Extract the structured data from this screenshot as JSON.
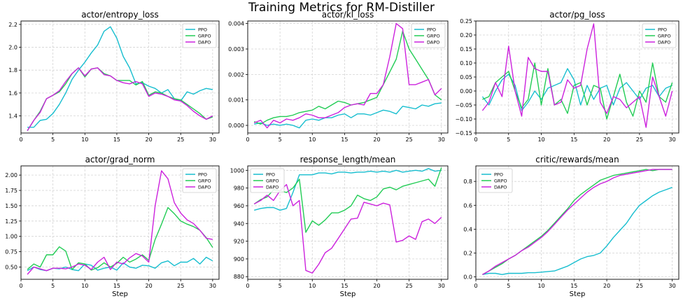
{
  "figure": {
    "title": "Training Metrics for RM-Distiller"
  },
  "series_names": [
    "PPO",
    "GRPO",
    "DAPO"
  ],
  "colors": {
    "PPO": "#17becf",
    "GRPO": "#22cc55",
    "DAPO": "#cc22dd"
  },
  "chart_data": [
    {
      "type": "line",
      "title": "actor/entropy_loss",
      "xlabel": "",
      "x": [
        1,
        2,
        3,
        4,
        5,
        6,
        7,
        8,
        9,
        10,
        11,
        12,
        13,
        14,
        15,
        16,
        17,
        18,
        19,
        20,
        21,
        22,
        23,
        24,
        25,
        26,
        27,
        28,
        29,
        30
      ],
      "xticks": [
        0,
        5,
        10,
        15,
        20,
        25,
        30
      ],
      "xticklabels": [
        "0",
        "5",
        "10",
        "15",
        "20",
        "25",
        "30"
      ],
      "xlim": [
        0,
        31
      ],
      "ylim": [
        1.25,
        2.23
      ],
      "yticks": [
        1.4,
        1.6,
        1.8,
        2.0,
        2.2
      ],
      "yticklabels": [
        "1.4",
        "1.6",
        "1.8",
        "2.0",
        "2.2"
      ],
      "legend": "top-right",
      "series": [
        {
          "name": "PPO",
          "values": [
            1.3,
            1.3,
            1.36,
            1.37,
            1.42,
            1.5,
            1.6,
            1.72,
            1.8,
            1.87,
            1.95,
            2.02,
            2.14,
            2.18,
            2.08,
            1.92,
            1.82,
            1.68,
            1.69,
            1.66,
            1.64,
            1.6,
            1.63,
            1.55,
            1.53,
            1.61,
            1.59,
            1.62,
            1.64,
            1.63
          ]
        },
        {
          "name": "GRPO",
          "values": [
            1.27,
            1.36,
            1.44,
            1.55,
            1.58,
            1.61,
            1.68,
            1.77,
            1.82,
            1.74,
            1.81,
            1.82,
            1.77,
            1.75,
            1.71,
            1.71,
            1.71,
            1.67,
            1.7,
            1.58,
            1.61,
            1.6,
            1.57,
            1.55,
            1.54,
            1.5,
            1.46,
            1.42,
            1.37,
            1.39
          ]
        },
        {
          "name": "DAPO",
          "values": [
            1.27,
            1.36,
            1.43,
            1.55,
            1.58,
            1.62,
            1.7,
            1.77,
            1.82,
            1.75,
            1.81,
            1.82,
            1.76,
            1.75,
            1.71,
            1.69,
            1.68,
            1.7,
            1.68,
            1.57,
            1.6,
            1.59,
            1.57,
            1.54,
            1.53,
            1.49,
            1.44,
            1.4,
            1.37,
            1.4
          ]
        }
      ]
    },
    {
      "type": "line",
      "title": "actor/kl_loss",
      "xlabel": "",
      "x": [
        1,
        2,
        3,
        4,
        5,
        6,
        7,
        8,
        9,
        10,
        11,
        12,
        13,
        14,
        15,
        16,
        17,
        18,
        19,
        20,
        21,
        22,
        23,
        24,
        25,
        26,
        27,
        28,
        29,
        30
      ],
      "xticks": [
        0,
        5,
        10,
        15,
        20,
        25,
        30
      ],
      "xticklabels": [
        "0",
        "5",
        "10",
        "15",
        "20",
        "25",
        "30"
      ],
      "xlim": [
        0,
        31
      ],
      "ylim": [
        -0.0003,
        0.0041
      ],
      "yticks": [
        0,
        0.001,
        0.002,
        0.003,
        0.004
      ],
      "yticklabels": [
        "0.000",
        "0.001",
        "0.002",
        "0.003",
        "0.004"
      ],
      "legend": "top-right",
      "series": [
        {
          "name": "PPO",
          "values": [
            5e-05,
            0.0001,
            0.0,
            5e-05,
            0.0,
            5e-05,
            0.0,
            -0.0001,
            0.0002,
            0.00025,
            0.0002,
            0.0003,
            0.0003,
            0.0004,
            0.00045,
            0.0003,
            0.00045,
            0.00045,
            0.0004,
            0.0005,
            0.0006,
            0.00055,
            0.00045,
            0.00075,
            0.0007,
            0.00065,
            0.0008,
            0.00075,
            0.00085,
            0.00088
          ]
        },
        {
          "name": "GRPO",
          "values": [
            0.00015,
            5e-05,
            0.0002,
            0.0003,
            0.00035,
            0.00035,
            0.0004,
            0.0005,
            0.00055,
            0.0006,
            0.00075,
            0.00065,
            0.0008,
            0.00095,
            0.0009,
            0.0008,
            0.00085,
            0.0009,
            0.001,
            0.0011,
            0.0016,
            0.0021,
            0.0026,
            0.0037,
            0.003,
            0.0026,
            0.0022,
            0.0018,
            0.0012,
            0.001
          ]
        },
        {
          "name": "DAPO",
          "values": [
            0.0001,
            0.0002,
            -0.0001,
            0.0002,
            0.0001,
            0.00025,
            0.0002,
            0.0003,
            0.00045,
            0.0004,
            0.0003,
            0.0003,
            0.0004,
            0.0005,
            0.0007,
            0.0008,
            0.00085,
            0.0008,
            0.00125,
            0.00125,
            0.0016,
            0.0027,
            0.004,
            0.0038,
            0.0016,
            0.0016,
            0.0017,
            0.0018,
            0.0012,
            0.00145
          ]
        }
      ]
    },
    {
      "type": "line",
      "title": "actor/pg_loss",
      "xlabel": "",
      "x": [
        1,
        2,
        3,
        4,
        5,
        6,
        7,
        8,
        9,
        10,
        11,
        12,
        13,
        14,
        15,
        16,
        17,
        18,
        19,
        20,
        21,
        22,
        23,
        24,
        25,
        26,
        27,
        28,
        29,
        30
      ],
      "xticks": [
        0,
        5,
        10,
        15,
        20,
        25,
        30
      ],
      "xticklabels": [
        "0",
        "5",
        "10",
        "15",
        "20",
        "25",
        "30"
      ],
      "xlim": [
        0,
        31
      ],
      "ylim": [
        -0.15,
        0.25
      ],
      "yticks": [
        -0.15,
        -0.1,
        -0.05,
        0.0,
        0.05,
        0.1,
        0.15,
        0.2,
        0.25
      ],
      "yticklabels": [
        "−0.15",
        "−0.10",
        "−0.05",
        "0.00",
        "0.05",
        "0.10",
        "0.15",
        "0.20",
        "0.25"
      ],
      "legend": "top-right",
      "series": [
        {
          "name": "PPO",
          "values": [
            -0.02,
            -0.05,
            0.0,
            0.04,
            0.06,
            0.02,
            -0.07,
            -0.04,
            0.0,
            -0.03,
            0.01,
            0.02,
            0.03,
            0.08,
            0.04,
            -0.05,
            0.02,
            -0.03,
            0.01,
            0.02,
            -0.05,
            0.01,
            0.03,
            0.0,
            -0.03,
            0.01,
            0.02,
            -0.02,
            0.01,
            0.02
          ]
        },
        {
          "name": "GRPO",
          "values": [
            -0.03,
            -0.02,
            0.03,
            0.05,
            0.07,
            0.0,
            -0.06,
            -0.03,
            0.1,
            -0.05,
            0.08,
            -0.05,
            -0.03,
            -0.08,
            0.02,
            0.03,
            -0.05,
            0.02,
            0.01,
            -0.1,
            -0.02,
            0.06,
            -0.04,
            -0.09,
            0.0,
            -0.04,
            0.1,
            -0.02,
            -0.04,
            0.03
          ]
        },
        {
          "name": "DAPO",
          "values": [
            -0.07,
            -0.04,
            0.03,
            -0.02,
            0.16,
            0.0,
            -0.09,
            0.12,
            0.08,
            0.07,
            0.07,
            -0.05,
            -0.04,
            0.04,
            0.01,
            0.02,
            0.15,
            0.24,
            -0.04,
            -0.08,
            -0.02,
            -0.03,
            -0.06,
            -0.04,
            -0.02,
            -0.13,
            0.05,
            -0.02,
            -0.09,
            0.0
          ]
        }
      ]
    },
    {
      "type": "line",
      "title": "actor/grad_norm",
      "xlabel": "Step",
      "x": [
        1,
        2,
        3,
        4,
        5,
        6,
        7,
        8,
        9,
        10,
        11,
        12,
        13,
        14,
        15,
        16,
        17,
        18,
        19,
        20,
        21,
        22,
        23,
        24,
        25,
        26,
        27,
        28,
        29,
        30
      ],
      "xticks": [
        0,
        5,
        10,
        15,
        20,
        25,
        30
      ],
      "xticklabels": [
        "0",
        "5",
        "10",
        "15",
        "20",
        "25",
        "30"
      ],
      "xlim": [
        0,
        31
      ],
      "ylim": [
        0.3,
        2.15
      ],
      "yticks": [
        0.5,
        0.75,
        1.0,
        1.25,
        1.5,
        1.75,
        2.0
      ],
      "yticklabels": [
        "0.50",
        "0.75",
        "1.00",
        "1.25",
        "1.50",
        "1.75",
        "2.00"
      ],
      "legend": "top-right",
      "series": [
        {
          "name": "PPO",
          "values": [
            0.44,
            0.5,
            0.46,
            0.44,
            0.48,
            0.47,
            0.5,
            0.46,
            0.44,
            0.55,
            0.53,
            0.45,
            0.48,
            0.5,
            0.45,
            0.57,
            0.5,
            0.48,
            0.53,
            0.52,
            0.48,
            0.57,
            0.6,
            0.52,
            0.58,
            0.58,
            0.64,
            0.55,
            0.66,
            0.6
          ]
        },
        {
          "name": "GRPO",
          "values": [
            0.46,
            0.55,
            0.5,
            0.7,
            0.7,
            0.83,
            0.76,
            0.46,
            0.57,
            0.55,
            0.45,
            0.49,
            0.57,
            0.5,
            0.56,
            0.66,
            0.58,
            0.63,
            0.7,
            0.61,
            0.95,
            1.2,
            1.47,
            1.37,
            1.25,
            1.2,
            1.16,
            1.1,
            0.98,
            0.82
          ]
        },
        {
          "name": "DAPO",
          "values": [
            0.38,
            0.5,
            0.47,
            0.44,
            0.48,
            0.48,
            0.47,
            0.5,
            0.55,
            0.53,
            0.46,
            0.58,
            0.66,
            0.46,
            0.58,
            0.55,
            0.65,
            0.72,
            0.68,
            0.58,
            1.5,
            2.07,
            1.94,
            1.55,
            1.38,
            1.27,
            1.21,
            1.1,
            0.97,
            0.95
          ]
        }
      ]
    },
    {
      "type": "line",
      "title": "response_length/mean",
      "xlabel": "Step",
      "x": [
        1,
        2,
        3,
        4,
        5,
        6,
        7,
        8,
        9,
        10,
        11,
        12,
        13,
        14,
        15,
        16,
        17,
        18,
        19,
        20,
        21,
        22,
        23,
        24,
        25,
        26,
        27,
        28,
        29,
        30
      ],
      "xticks": [
        0,
        5,
        10,
        15,
        20,
        25,
        30
      ],
      "xticklabels": [
        "0",
        "5",
        "10",
        "15",
        "20",
        "25",
        "30"
      ],
      "xlim": [
        0,
        31
      ],
      "ylim": [
        877,
        1005
      ],
      "yticks": [
        880,
        900,
        920,
        940,
        960,
        980,
        1000
      ],
      "yticklabels": [
        "880",
        "900",
        "920",
        "940",
        "960",
        "980",
        "1000"
      ],
      "legend": "top-left",
      "series": [
        {
          "name": "PPO",
          "values": [
            955,
            957,
            958,
            958,
            955,
            957,
            975,
            995,
            995,
            995,
            997,
            997,
            996,
            998,
            998,
            997,
            998,
            998,
            999,
            998,
            999,
            998,
            1000,
            998,
            999,
            1000,
            999,
            1002,
            999,
            1000
          ]
        },
        {
          "name": "GRPO",
          "values": [
            962,
            967,
            970,
            978,
            977,
            975,
            980,
            990,
            930,
            943,
            938,
            944,
            952,
            952,
            955,
            960,
            972,
            968,
            966,
            970,
            979,
            981,
            978,
            982,
            984,
            986,
            988,
            990,
            982,
            1003
          ]
        },
        {
          "name": "DAPO",
          "values": [
            962,
            966,
            972,
            966,
            977,
            984,
            960,
            966,
            887,
            884,
            894,
            907,
            912,
            923,
            934,
            945,
            946,
            964,
            962,
            960,
            963,
            961,
            919,
            921,
            926,
            922,
            942,
            945,
            940,
            947
          ]
        }
      ]
    },
    {
      "type": "line",
      "title": "critic/rewards/mean",
      "xlabel": "Step",
      "x": [
        1,
        2,
        3,
        4,
        5,
        6,
        7,
        8,
        9,
        10,
        11,
        12,
        13,
        14,
        15,
        16,
        17,
        18,
        19,
        20,
        21,
        22,
        23,
        24,
        25,
        26,
        27,
        28,
        29,
        30
      ],
      "xticks": [
        0,
        5,
        10,
        15,
        20,
        25,
        30
      ],
      "xticklabels": [
        "0",
        "5",
        "10",
        "15",
        "20",
        "25",
        "30"
      ],
      "xlim": [
        0,
        31
      ],
      "ylim": [
        -0.02,
        0.93
      ],
      "yticks": [
        0.0,
        0.2,
        0.4,
        0.6,
        0.8
      ],
      "yticklabels": [
        "0.0",
        "0.2",
        "0.4",
        "0.6",
        "0.8"
      ],
      "legend": "top-left",
      "series": [
        {
          "name": "PPO",
          "values": [
            0.02,
            0.03,
            0.03,
            0.02,
            0.03,
            0.03,
            0.03,
            0.035,
            0.035,
            0.04,
            0.045,
            0.05,
            0.07,
            0.09,
            0.12,
            0.15,
            0.17,
            0.18,
            0.2,
            0.26,
            0.33,
            0.39,
            0.45,
            0.53,
            0.6,
            0.64,
            0.68,
            0.71,
            0.73,
            0.75
          ]
        },
        {
          "name": "GRPO",
          "values": [
            0.02,
            0.05,
            0.08,
            0.11,
            0.15,
            0.18,
            0.22,
            0.26,
            0.3,
            0.34,
            0.39,
            0.45,
            0.51,
            0.57,
            0.64,
            0.69,
            0.73,
            0.77,
            0.81,
            0.83,
            0.85,
            0.86,
            0.87,
            0.88,
            0.89,
            0.9,
            0.89,
            0.9,
            0.9,
            0.9
          ]
        },
        {
          "name": "DAPO",
          "values": [
            0.02,
            0.05,
            0.09,
            0.12,
            0.15,
            0.18,
            0.22,
            0.25,
            0.29,
            0.33,
            0.38,
            0.44,
            0.5,
            0.56,
            0.61,
            0.66,
            0.71,
            0.75,
            0.78,
            0.8,
            0.83,
            0.85,
            0.86,
            0.87,
            0.88,
            0.89,
            0.9,
            0.9,
            0.9,
            0.9
          ]
        }
      ]
    }
  ]
}
